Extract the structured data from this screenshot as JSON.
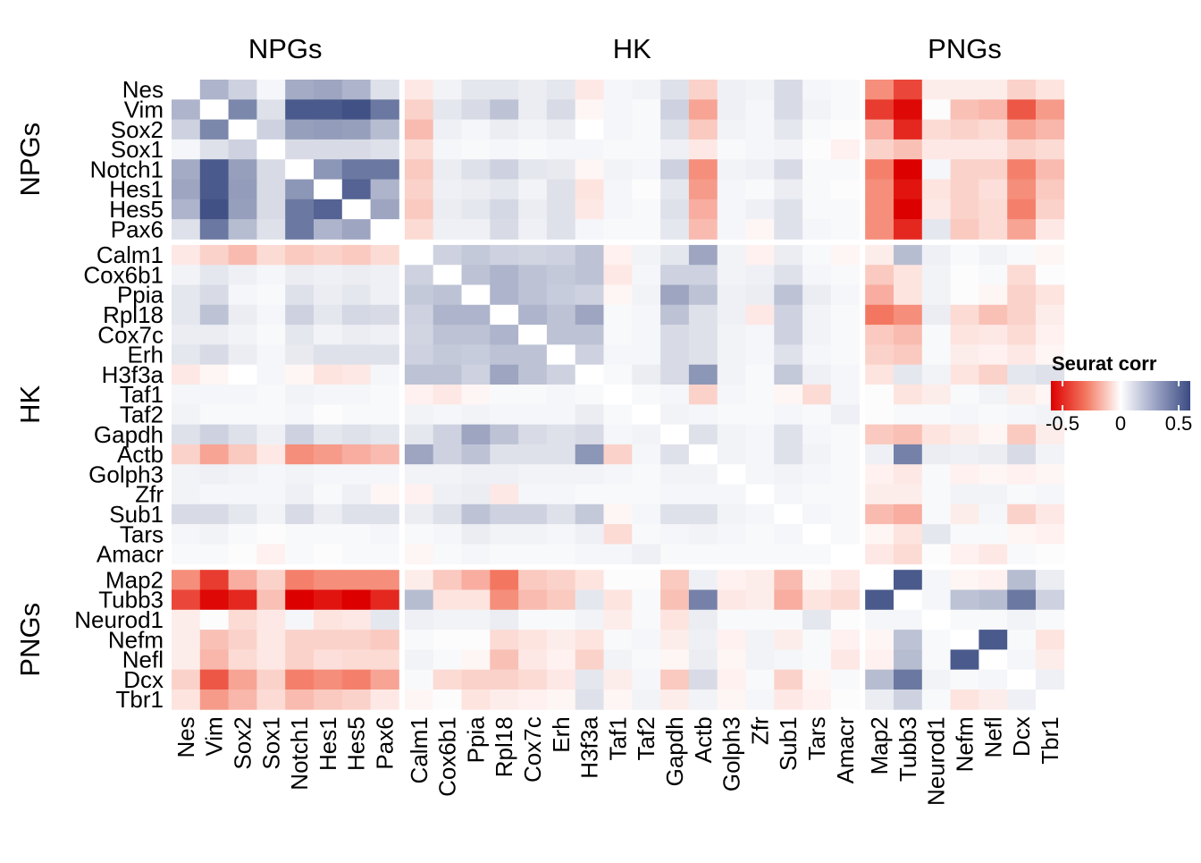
{
  "chart_data": {
    "type": "heatmap",
    "legend": {
      "title": "Seurat corr",
      "min": -0.6,
      "max": 0.6,
      "ticks": [
        -0.5,
        0,
        0.5
      ],
      "tick_labels": [
        "-0.5",
        "0",
        "0.5"
      ],
      "position": "right"
    },
    "colors": {
      "negative": "#dd0000",
      "zero": "#ffffff",
      "positive": "#3a4b82"
    },
    "groups": [
      {
        "name": "NPGs",
        "genes": [
          "Nes",
          "Vim",
          "Sox2",
          "Sox1",
          "Notch1",
          "Hes1",
          "Hes5",
          "Pax6"
        ]
      },
      {
        "name": "HK",
        "genes": [
          "Calm1",
          "Cox6b1",
          "Ppia",
          "Rpl18",
          "Cox7c",
          "Erh",
          "H3f3a",
          "Taf1",
          "Taf2",
          "Gapdh",
          "Actb",
          "Golph3",
          "Zfr",
          "Sub1",
          "Tars",
          "Amacr"
        ]
      },
      {
        "name": "PNGs",
        "genes": [
          "Map2",
          "Tubb3",
          "Neurod1",
          "Nefm",
          "Nefl",
          "Dcx",
          "Tbr1"
        ]
      }
    ],
    "matrix": [
      [
        0,
        0.25,
        0.15,
        0.03,
        0.28,
        0.3,
        0.25,
        0.1,
        -0.05,
        0.04,
        0.08,
        0.08,
        0.06,
        0.08,
        -0.05,
        0.03,
        0.04,
        0.1,
        -0.1,
        0.05,
        0.04,
        0.12,
        0.03,
        0.02,
        -0.25,
        -0.42,
        -0.04,
        -0.04,
        -0.04,
        -0.1,
        -0.06
      ],
      [
        0.25,
        0,
        0.4,
        0.1,
        0.55,
        0.55,
        0.58,
        0.45,
        -0.1,
        0.08,
        0.12,
        0.2,
        0.06,
        0.12,
        -0.02,
        0.03,
        0.02,
        0.15,
        -0.2,
        0.05,
        0.03,
        0.12,
        0.04,
        0.02,
        -0.45,
        -0.58,
        0.01,
        -0.14,
        -0.16,
        -0.38,
        -0.22
      ],
      [
        0.15,
        0.4,
        0,
        0.15,
        0.32,
        0.33,
        0.32,
        0.22,
        -0.15,
        0.05,
        0.03,
        0.06,
        0.04,
        0.06,
        0,
        0.03,
        0.02,
        0.1,
        -0.12,
        0.04,
        0.03,
        0.08,
        0.02,
        0.01,
        -0.18,
        -0.5,
        -0.08,
        -0.1,
        -0.08,
        -0.2,
        -0.16
      ],
      [
        0.03,
        0.1,
        0.15,
        0,
        0.12,
        0.12,
        0.12,
        0.1,
        -0.08,
        0.03,
        0.02,
        0.03,
        0.02,
        0.03,
        0.03,
        0.02,
        0.02,
        0.05,
        -0.05,
        0.02,
        0.03,
        0.04,
        0.01,
        -0.03,
        -0.1,
        -0.14,
        -0.05,
        -0.05,
        -0.05,
        -0.1,
        -0.08
      ],
      [
        0.28,
        0.55,
        0.32,
        0.12,
        0,
        0.35,
        0.45,
        0.45,
        -0.12,
        0.06,
        0.1,
        0.15,
        0.08,
        0.07,
        -0.02,
        0.04,
        0.03,
        0.15,
        -0.25,
        0.04,
        0.05,
        0.12,
        0.02,
        0.02,
        -0.28,
        -0.6,
        0.03,
        -0.1,
        -0.1,
        -0.28,
        -0.15
      ],
      [
        0.3,
        0.55,
        0.33,
        0.12,
        0.35,
        0,
        0.52,
        0.25,
        -0.1,
        0.05,
        0.06,
        0.08,
        0.04,
        0.1,
        -0.06,
        0.03,
        0.01,
        0.08,
        -0.22,
        0.03,
        0.02,
        0.06,
        0.02,
        0.01,
        -0.25,
        -0.55,
        -0.06,
        -0.1,
        -0.07,
        -0.25,
        -0.12
      ],
      [
        0.25,
        0.58,
        0.32,
        0.12,
        0.45,
        0.52,
        0,
        0.3,
        -0.12,
        0.06,
        0.08,
        0.13,
        0.06,
        0.1,
        -0.05,
        0.03,
        0.02,
        0.1,
        -0.18,
        0.03,
        0.05,
        0.1,
        0.02,
        0.02,
        -0.25,
        -0.6,
        -0.05,
        -0.1,
        -0.08,
        -0.28,
        -0.1
      ],
      [
        0.1,
        0.45,
        0.22,
        0.1,
        0.45,
        0.25,
        0.3,
        0,
        -0.08,
        0.05,
        0.05,
        0.12,
        0.05,
        0.1,
        0.03,
        0.02,
        0.02,
        0.08,
        -0.15,
        0.03,
        -0.02,
        0.1,
        0.03,
        0.02,
        -0.25,
        -0.5,
        0.08,
        -0.12,
        -0.08,
        -0.2,
        -0.05
      ],
      [
        -0.05,
        -0.1,
        -0.15,
        -0.08,
        -0.12,
        -0.1,
        -0.12,
        -0.08,
        0,
        0.15,
        0.18,
        0.15,
        0.14,
        0.15,
        0.2,
        -0.03,
        0.04,
        0.08,
        0.3,
        0.04,
        -0.03,
        0.06,
        0.02,
        -0.02,
        -0.04,
        0.22,
        0.05,
        0.02,
        0.04,
        0.02,
        -0.02
      ],
      [
        0.04,
        0.08,
        0.05,
        0.03,
        0.06,
        0.05,
        0.06,
        0.05,
        0.15,
        0,
        0.2,
        0.25,
        0.2,
        0.18,
        0.2,
        -0.05,
        0.03,
        0.15,
        0.15,
        0.04,
        0.05,
        0.1,
        0.03,
        0.02,
        -0.12,
        -0.06,
        0.04,
        0.01,
        0.02,
        -0.08,
        0.01
      ],
      [
        0.08,
        0.12,
        0.03,
        0.02,
        0.1,
        0.06,
        0.08,
        0.05,
        0.18,
        0.2,
        0,
        0.25,
        0.2,
        0.17,
        0.15,
        -0.02,
        0.04,
        0.3,
        0.2,
        0.05,
        0.06,
        0.2,
        0.06,
        0.03,
        -0.18,
        -0.06,
        0.04,
        0.01,
        -0.02,
        -0.1,
        -0.06
      ],
      [
        0.08,
        0.2,
        0.06,
        0.03,
        0.15,
        0.08,
        0.13,
        0.12,
        0.15,
        0.25,
        0.25,
        0,
        0.25,
        0.2,
        0.3,
        0.02,
        0.03,
        0.2,
        0.1,
        0.05,
        -0.05,
        0.15,
        0.04,
        0.02,
        -0.3,
        -0.25,
        0.06,
        -0.08,
        -0.14,
        -0.1,
        -0.04
      ],
      [
        0.06,
        0.06,
        0.04,
        0.02,
        0.08,
        0.04,
        0.06,
        0.05,
        0.14,
        0.2,
        0.2,
        0.25,
        0,
        0.2,
        0.2,
        0.02,
        0.03,
        0.12,
        0.1,
        0.04,
        0.03,
        0.15,
        0.04,
        0.02,
        -0.12,
        -0.15,
        0.02,
        -0.06,
        -0.05,
        -0.08,
        -0.03
      ],
      [
        0.08,
        0.12,
        0.06,
        0.03,
        0.07,
        0.1,
        0.1,
        0.1,
        0.15,
        0.18,
        0.17,
        0.2,
        0.2,
        0,
        0.15,
        0.03,
        0.03,
        0.12,
        0.1,
        0.04,
        0.03,
        0.1,
        0.03,
        0.02,
        -0.1,
        -0.12,
        0.02,
        -0.04,
        -0.03,
        -0.05,
        -0.02
      ],
      [
        -0.05,
        -0.02,
        0,
        0.03,
        -0.02,
        -0.06,
        -0.05,
        0.03,
        0.2,
        0.2,
        0.15,
        0.3,
        0.2,
        0.15,
        0,
        0.02,
        0.06,
        0.12,
        0.35,
        0.04,
        0.02,
        0.18,
        0.05,
        0.03,
        -0.06,
        0.08,
        0.04,
        -0.06,
        -0.1,
        0.08,
        0.1
      ],
      [
        0.03,
        0.03,
        0.03,
        0.02,
        0.04,
        0.03,
        0.03,
        0.02,
        -0.03,
        -0.05,
        -0.02,
        0.02,
        0.02,
        0.03,
        0.02,
        0,
        0.02,
        0.03,
        -0.1,
        0.03,
        0.02,
        -0.02,
        -0.08,
        0.03,
        0.01,
        -0.06,
        -0.04,
        0.02,
        0.04,
        -0.04,
        -0.02
      ],
      [
        0.04,
        0.02,
        0.02,
        0.02,
        0.03,
        0.01,
        0.02,
        0.02,
        0.04,
        0.03,
        0.04,
        0.03,
        0.03,
        0.03,
        0.06,
        0.02,
        0,
        0.04,
        0.03,
        0.02,
        0.02,
        0.03,
        0.02,
        0.05,
        0.01,
        0.02,
        0.02,
        0.03,
        0.02,
        0.03,
        0.04
      ],
      [
        0.1,
        0.15,
        0.1,
        0.05,
        0.15,
        0.08,
        0.1,
        0.08,
        0.08,
        0.15,
        0.3,
        0.2,
        0.12,
        0.1,
        0.12,
        0.03,
        0.04,
        0,
        0.1,
        0.04,
        0.03,
        0.1,
        0.03,
        0.02,
        -0.12,
        -0.14,
        -0.06,
        -0.04,
        -0.02,
        -0.12,
        -0.04
      ],
      [
        -0.1,
        -0.2,
        -0.12,
        -0.05,
        -0.25,
        -0.22,
        -0.18,
        -0.15,
        0.3,
        0.15,
        0.2,
        0.1,
        0.1,
        0.1,
        0.35,
        -0.1,
        0.03,
        0.1,
        0,
        0.04,
        0.03,
        0.1,
        0.04,
        0.02,
        0.05,
        0.42,
        0.06,
        0.05,
        0.06,
        0.12,
        0.04
      ],
      [
        0.04,
        0.05,
        0.04,
        0.03,
        0.04,
        0.03,
        0.03,
        0.03,
        0.04,
        0.04,
        0.05,
        0.05,
        0.04,
        0.04,
        0.04,
        0.03,
        0.02,
        0.04,
        0.04,
        0,
        0.03,
        0.04,
        0.03,
        0.02,
        -0.03,
        -0.05,
        0.02,
        -0.03,
        -0.02,
        -0.03,
        -0.02
      ],
      [
        0.04,
        0.03,
        0.03,
        0.03,
        0.05,
        0.02,
        0.05,
        -0.02,
        -0.03,
        0.05,
        0.06,
        -0.05,
        0.03,
        0.03,
        0.02,
        0.02,
        0.02,
        0.03,
        0.03,
        0.03,
        0,
        0.03,
        0.02,
        0.02,
        -0.04,
        -0.04,
        0.02,
        0.04,
        0.04,
        0.02,
        0.03
      ],
      [
        0.12,
        0.12,
        0.08,
        0.04,
        0.12,
        0.06,
        0.1,
        0.1,
        0.06,
        0.1,
        0.2,
        0.15,
        0.15,
        0.1,
        0.18,
        -0.02,
        0.03,
        0.1,
        0.1,
        0.04,
        0.03,
        0,
        0.03,
        0.02,
        -0.15,
        -0.18,
        0.02,
        -0.04,
        0.03,
        -0.1,
        -0.05
      ],
      [
        0.03,
        0.04,
        0.02,
        0.01,
        0.02,
        0.02,
        0.02,
        0.03,
        0.02,
        0.03,
        0.06,
        0.04,
        0.04,
        0.03,
        0.05,
        -0.08,
        0.02,
        0.03,
        0.04,
        0.03,
        0.02,
        0.03,
        0,
        0.02,
        -0.02,
        -0.06,
        0.08,
        0.02,
        0.02,
        -0.02,
        -0.03
      ],
      [
        0.02,
        0.02,
        0.01,
        -0.03,
        0.02,
        0.01,
        0.02,
        0.02,
        -0.02,
        0.02,
        0.03,
        0.02,
        0.02,
        0.02,
        0.03,
        0.03,
        0.05,
        0.02,
        0.02,
        0.02,
        0.02,
        0.02,
        0.02,
        0,
        -0.05,
        -0.08,
        0.01,
        -0.03,
        -0.05,
        0.02,
        0.01
      ],
      [
        -0.25,
        -0.45,
        -0.18,
        -0.1,
        -0.28,
        -0.25,
        -0.25,
        -0.25,
        -0.04,
        -0.12,
        -0.18,
        -0.3,
        -0.12,
        -0.1,
        -0.06,
        0.01,
        0.01,
        -0.12,
        0.05,
        -0.03,
        -0.04,
        -0.15,
        -0.02,
        -0.05,
        0,
        0.55,
        0.03,
        -0.02,
        -0.03,
        0.22,
        0.06
      ],
      [
        -0.42,
        -0.58,
        -0.5,
        -0.14,
        -0.6,
        -0.55,
        -0.6,
        -0.5,
        0.22,
        -0.06,
        -0.06,
        -0.25,
        -0.15,
        -0.12,
        0.08,
        -0.06,
        0.02,
        -0.14,
        0.42,
        -0.05,
        -0.04,
        -0.18,
        -0.06,
        -0.08,
        0.55,
        0,
        0.03,
        0.2,
        0.22,
        0.45,
        0.15
      ],
      [
        -0.04,
        0.01,
        -0.08,
        -0.05,
        0.03,
        -0.06,
        -0.05,
        0.08,
        0.05,
        0.04,
        0.04,
        0.06,
        0.02,
        0.02,
        0.04,
        -0.04,
        0.02,
        -0.06,
        0.06,
        0.02,
        0.02,
        0.02,
        0.08,
        0.01,
        0.03,
        0.03,
        0,
        0.02,
        0.02,
        0.04,
        0.02
      ],
      [
        -0.04,
        -0.14,
        -0.1,
        -0.05,
        -0.1,
        -0.1,
        -0.1,
        -0.12,
        0.02,
        0.01,
        0.01,
        -0.08,
        -0.06,
        -0.04,
        -0.06,
        0.02,
        0.03,
        -0.04,
        0.05,
        -0.03,
        0.04,
        -0.04,
        0.02,
        -0.03,
        -0.02,
        0.2,
        0.02,
        0,
        0.55,
        0.02,
        -0.06
      ],
      [
        -0.04,
        -0.16,
        -0.08,
        -0.05,
        -0.1,
        -0.07,
        -0.08,
        -0.08,
        0.04,
        0.02,
        -0.02,
        -0.14,
        -0.05,
        -0.03,
        -0.1,
        0.04,
        0.02,
        -0.02,
        0.06,
        -0.02,
        0.04,
        0.03,
        0.02,
        -0.05,
        -0.03,
        0.22,
        0.02,
        0.55,
        0,
        0.03,
        -0.04
      ],
      [
        -0.1,
        -0.38,
        -0.2,
        -0.1,
        -0.28,
        -0.25,
        -0.28,
        -0.2,
        0.02,
        -0.08,
        -0.1,
        -0.1,
        -0.08,
        -0.05,
        0.08,
        -0.04,
        0.03,
        -0.12,
        0.12,
        -0.03,
        0.02,
        -0.1,
        -0.02,
        0.02,
        0.22,
        0.45,
        0.04,
        0.02,
        0.03,
        0,
        0.05
      ],
      [
        -0.06,
        -0.22,
        -0.16,
        -0.08,
        -0.15,
        -0.12,
        -0.1,
        -0.05,
        -0.02,
        0.01,
        -0.06,
        -0.04,
        -0.03,
        -0.02,
        0.1,
        -0.02,
        0.04,
        -0.04,
        0.04,
        -0.02,
        0.03,
        -0.05,
        -0.03,
        0.01,
        0.06,
        0.15,
        0.02,
        -0.06,
        -0.04,
        0.05,
        0
      ]
    ]
  }
}
